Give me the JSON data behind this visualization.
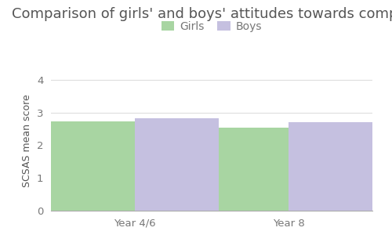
{
  "title": "Comparison of girls' and boys' attitudes towards computing",
  "categories": [
    "Year 4/6",
    "Year 8"
  ],
  "girls_values": [
    2.72,
    2.55
  ],
  "boys_values": [
    2.83,
    2.7
  ],
  "girls_color": "#a8d5a2",
  "boys_color": "#c5c0e0",
  "ylabel": "SCSAS mean score",
  "ylim": [
    0,
    4.3
  ],
  "yticks": [
    0,
    1,
    2,
    3,
    4
  ],
  "legend_labels": [
    "Girls",
    "Boys"
  ],
  "bar_width": 0.3,
  "background_color": "#ffffff",
  "title_fontsize": 13,
  "axis_fontsize": 9,
  "tick_fontsize": 9.5,
  "title_color": "#555555",
  "tick_color": "#777777",
  "ylabel_color": "#555555"
}
